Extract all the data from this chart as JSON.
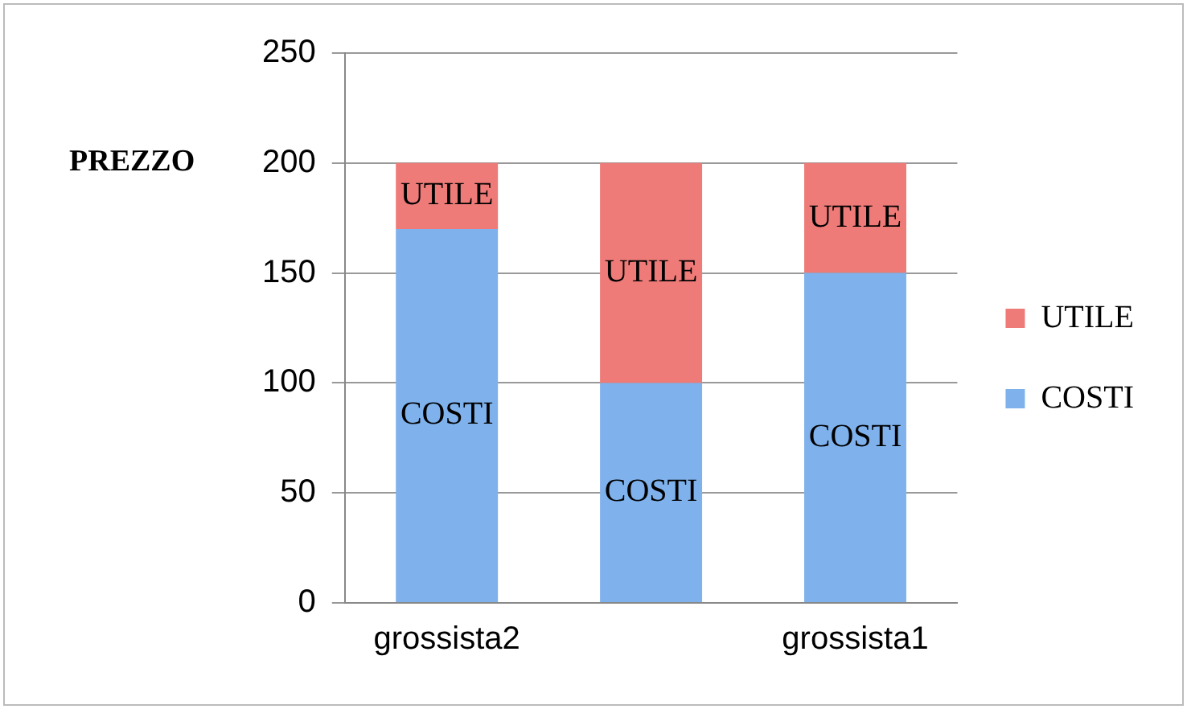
{
  "chart_data": {
    "type": "bar",
    "stacked": true,
    "ylabel": "PREZZO",
    "categories": [
      "grossista2",
      null,
      "grossista1"
    ],
    "series": [
      {
        "name": "COSTI",
        "color": "#7fb2ec",
        "values": [
          170,
          100,
          150
        ],
        "value_labels": [
          "COSTI",
          "COSTI",
          "COSTI"
        ]
      },
      {
        "name": "UTILE",
        "color": "#ee7b78",
        "values": [
          30,
          100,
          50
        ],
        "value_labels": [
          "UTILE",
          "UTILE",
          "UTILE"
        ]
      }
    ],
    "ylim": [
      0,
      250
    ],
    "yticks": [
      0,
      50,
      100,
      150,
      200,
      250
    ],
    "grid": "y",
    "legend": "right"
  }
}
